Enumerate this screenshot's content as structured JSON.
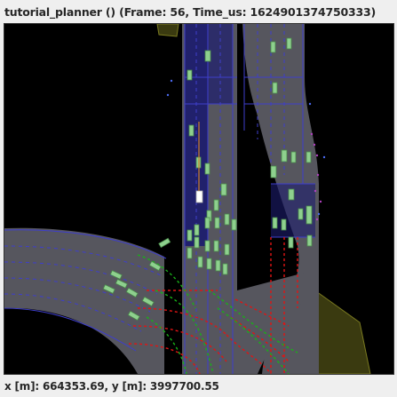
{
  "window": {
    "title": "tutorial_planner () (Frame: 56, Time_us: 1624901374750333)"
  },
  "status_bar": {
    "coordinates": "x [m]: 664353.69, y [m]: 3997700.55"
  },
  "colors": {
    "background": "#000000",
    "road": "#56565e",
    "lane_boundary": "#3e3ecc",
    "lane_fill_selected": "#1c1c6e",
    "vehicle": "#8ed08e",
    "ego_vehicle": "#ffffff",
    "route_red": "#e01414",
    "route_green": "#18b018",
    "sidewalk": "#3a3a10",
    "pedestrian": "#b040c0"
  }
}
